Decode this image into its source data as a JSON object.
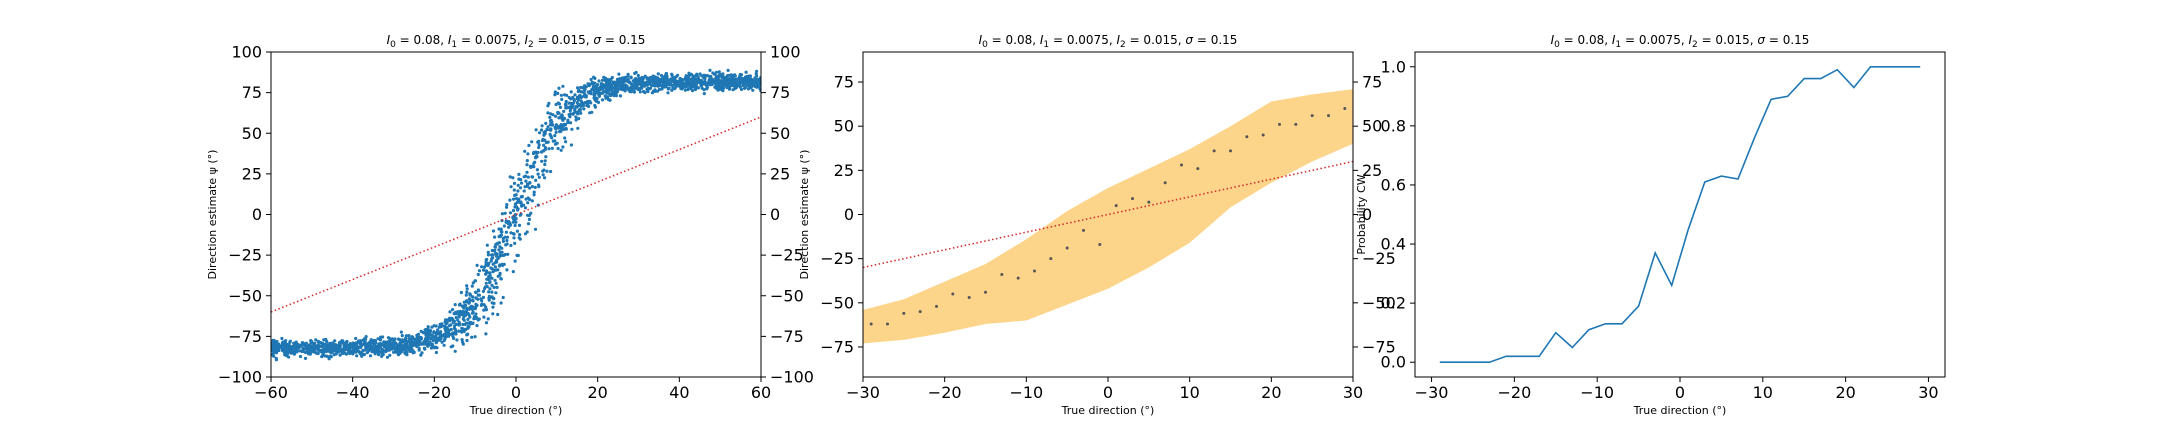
{
  "chart_data": [
    {
      "type": "scatter",
      "title": "I0 = 0.08, I1 = 0.0075, I2 = 0.015, σ = 0.15",
      "title_parts": {
        "l0": "I",
        "s0": "0",
        "e0": " = 0.08, ",
        "l1": "I",
        "s1": "1",
        "e1": " = 0.0075, ",
        "l2": "I",
        "s2": "2",
        "e2": " = 0.015, ",
        "sigma": "σ",
        "e3": " = 0.15"
      },
      "xlabel": "True direction (°)",
      "ylabel": "Direction estimate ψ (°)",
      "xlim": [
        -60,
        60
      ],
      "ylim": [
        -100,
        100
      ],
      "xticks": [
        -60,
        -40,
        -20,
        0,
        20,
        40,
        60
      ],
      "yticks": [
        -100,
        -75,
        -50,
        -25,
        0,
        25,
        50,
        75,
        100
      ],
      "right_yticks": [
        -100,
        -75,
        -50,
        -25,
        0,
        25,
        50,
        75,
        100
      ],
      "grid": false,
      "point_color": "#1f77b4",
      "sigmoid_trend": {
        "amplitude": 82,
        "center": 0,
        "scale": 12.5
      },
      "reference_line": {
        "x": [
          -60,
          60
        ],
        "y": [
          -60,
          60
        ],
        "color": "#d62728",
        "style": "dotted"
      }
    },
    {
      "type": "scatter",
      "title": "I0 = 0.08, I1 = 0.0075, I2 = 0.015, σ = 0.15",
      "title_parts": {
        "l0": "I",
        "s0": "0",
        "e0": " = 0.08, ",
        "l1": "I",
        "s1": "1",
        "e1": " = 0.0075, ",
        "l2": "I",
        "s2": "2",
        "e2": " = 0.015, ",
        "sigma": "σ",
        "e3": " = 0.15"
      },
      "xlabel": "True direction (°)",
      "ylabel": "Direction estimate ψ (°)",
      "xlim": [
        -30,
        30
      ],
      "ylim": [
        -92,
        92
      ],
      "xticks": [
        -30,
        -20,
        -10,
        0,
        10,
        20,
        30
      ],
      "yticks": [
        -75,
        -50,
        -25,
        0,
        25,
        50,
        75
      ],
      "right_yticks": [
        -75,
        -50,
        -25,
        0,
        25,
        50,
        75
      ],
      "grid": false,
      "band_color": "#fdd58a",
      "point_color": "#555555",
      "x": [
        -29,
        -27,
        -25,
        -23,
        -21,
        -19,
        -17,
        -15,
        -13,
        -11,
        -9,
        -7,
        -5,
        -3,
        -1,
        1,
        3,
        5,
        7,
        9,
        11,
        13,
        15,
        17,
        19,
        21,
        23,
        25,
        27,
        29
      ],
      "y": [
        -62,
        -62,
        -56,
        -55,
        -52,
        -45,
        -47,
        -44,
        -34,
        -36,
        -32,
        -25,
        -19,
        -9,
        -17,
        5,
        9,
        7,
        18,
        28,
        26,
        36,
        36,
        44,
        45,
        51,
        51,
        56,
        56,
        60
      ],
      "band_x": [
        -30,
        -25,
        -20,
        -15,
        -10,
        -5,
        0,
        5,
        10,
        15,
        20,
        25,
        30
      ],
      "band_lower": [
        -73,
        -71,
        -67,
        -62,
        -60,
        -51,
        -42,
        -30,
        -16,
        4,
        18,
        30,
        40
      ],
      "band_upper": [
        -54,
        -48,
        -38,
        -28,
        -14,
        2,
        15,
        26,
        37,
        50,
        64,
        68,
        71
      ],
      "reference_line": {
        "x": [
          -30,
          30
        ],
        "y": [
          -30,
          30
        ],
        "color": "#d62728",
        "style": "dotted"
      }
    },
    {
      "type": "line",
      "title": "I0 = 0.08, I1 = 0.0075, I2 = 0.015, σ = 0.15",
      "title_parts": {
        "l0": "I",
        "s0": "0",
        "e0": " = 0.08, ",
        "l1": "I",
        "s1": "1",
        "e1": " = 0.0075, ",
        "l2": "I",
        "s2": "2",
        "e2": " = 0.015, ",
        "sigma": "σ",
        "e3": " = 0.15"
      },
      "xlabel": "True direction (°)",
      "ylabel": "Probability CW",
      "xlim": [
        -32,
        32
      ],
      "ylim": [
        -0.05,
        1.05
      ],
      "xticks": [
        -30,
        -20,
        -10,
        0,
        10,
        20,
        30
      ],
      "yticks": [
        0.0,
        0.2,
        0.4,
        0.6,
        0.8,
        1.0
      ],
      "ytick_labels": [
        "0.0",
        "0.2",
        "0.4",
        "0.6",
        "0.8",
        "1.0"
      ],
      "grid": false,
      "line_color": "#1f77b4",
      "x": [
        -29,
        -27,
        -25,
        -23,
        -21,
        -19,
        -17,
        -15,
        -13,
        -11,
        -9,
        -7,
        -5,
        -3,
        -1,
        1,
        3,
        5,
        7,
        9,
        11,
        13,
        15,
        17,
        19,
        21,
        23,
        25,
        27,
        29
      ],
      "y": [
        0.0,
        0.0,
        0.0,
        0.0,
        0.02,
        0.02,
        0.02,
        0.1,
        0.05,
        0.11,
        0.13,
        0.13,
        0.19,
        0.37,
        0.26,
        0.45,
        0.61,
        0.63,
        0.62,
        0.76,
        0.89,
        0.9,
        0.96,
        0.96,
        0.99,
        0.93,
        1.0,
        1.0,
        1.0,
        1.0
      ]
    }
  ]
}
